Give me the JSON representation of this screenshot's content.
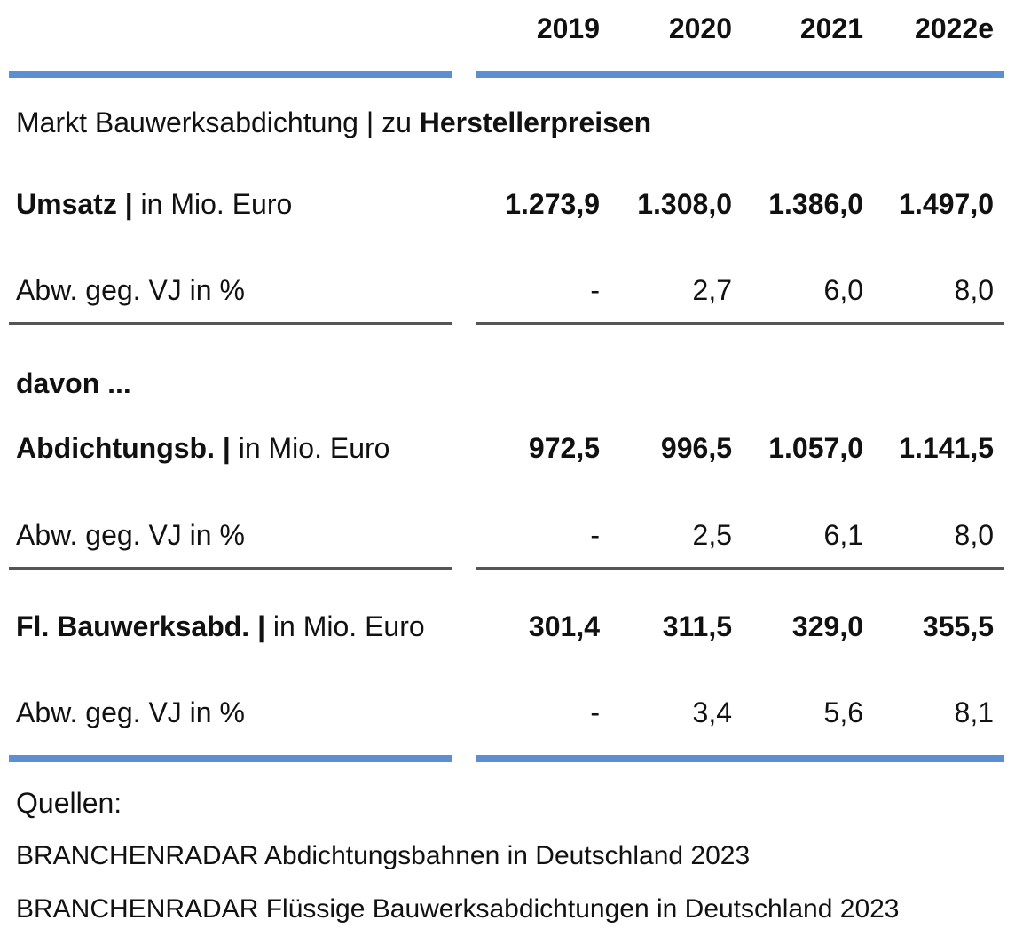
{
  "header": {
    "columns": [
      "2019",
      "2020",
      "2021",
      "2022e"
    ]
  },
  "section_title": {
    "text": "Markt Bauwerksabdichtung | zu",
    "bold": "Herstellerpreisen"
  },
  "rows": [
    {
      "label_bold": "Umsatz |",
      "label": "in Mio. Euro",
      "values": [
        "1.273,9",
        "1.308,0",
        "1.386,0",
        "1.497,0"
      ]
    },
    {
      "label": "Abw. geg. VJ in %",
      "values": [
        "-",
        "2,7",
        "6,0",
        "8,0"
      ]
    },
    {
      "label_bold": "Abdichtungsb. |",
      "label": "in Mio. Euro",
      "values": [
        "972,5",
        "996,5",
        "1.057,0",
        "1.141,5"
      ]
    },
    {
      "label": "Abw. geg. VJ in %",
      "values": [
        "-",
        "2,5",
        "6,1",
        "8,0"
      ]
    },
    {
      "label_bold": "Fl. Bauwerksabd. |",
      "label": "in Mio. Euro",
      "values": [
        "301,4",
        "311,5",
        "329,0",
        "355,5"
      ]
    },
    {
      "label": "Abw. geg. VJ in %",
      "values": [
        "-",
        "3,4",
        "5,6",
        "8,1"
      ]
    }
  ],
  "subheading": "davon ...",
  "sources": {
    "title": "Quellen:",
    "lines": [
      "BRANCHENRADAR Abdichtungsbahnen in Deutschland 2023",
      "BRANCHENRADAR Flüssige Bauwerksabdichtungen in Deutschland 2023"
    ]
  }
}
